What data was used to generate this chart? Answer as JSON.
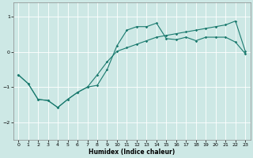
{
  "xlabel": "Humidex (Indice chaleur)",
  "ylabel": "",
  "bg_color": "#cde8e5",
  "grid_color": "#ffffff",
  "line_color": "#1a7a6e",
  "xlim": [
    -0.5,
    23.5
  ],
  "ylim": [
    -2.5,
    1.4
  ],
  "yticks": [
    -2,
    -1,
    0,
    1
  ],
  "xticks": [
    0,
    1,
    2,
    3,
    4,
    5,
    6,
    7,
    8,
    9,
    10,
    11,
    12,
    13,
    14,
    15,
    16,
    17,
    18,
    19,
    20,
    21,
    22,
    23
  ],
  "series1_x": [
    0,
    1,
    2,
    3,
    4,
    5,
    6,
    7,
    8,
    9,
    10,
    11,
    12,
    13,
    14,
    15,
    16,
    17,
    18,
    19,
    20,
    21,
    22,
    23
  ],
  "series1_y": [
    -0.65,
    -0.9,
    -1.35,
    -1.38,
    -1.58,
    -1.35,
    -1.15,
    -1.0,
    -0.95,
    -0.5,
    0.18,
    0.62,
    0.72,
    0.72,
    0.82,
    0.38,
    0.35,
    0.42,
    0.32,
    0.42,
    0.42,
    0.42,
    0.28,
    -0.05
  ],
  "series2_x": [
    0,
    1,
    2,
    3,
    4,
    5,
    6,
    7,
    8,
    9,
    10,
    11,
    12,
    13,
    14,
    15,
    16,
    17,
    18,
    19,
    20,
    21,
    22,
    23
  ],
  "series2_y": [
    -0.65,
    -0.9,
    -1.35,
    -1.38,
    -1.58,
    -1.35,
    -1.15,
    -1.0,
    -0.65,
    -0.28,
    0.02,
    0.12,
    0.22,
    0.32,
    0.42,
    0.47,
    0.52,
    0.57,
    0.62,
    0.67,
    0.72,
    0.77,
    0.88,
    0.02
  ]
}
